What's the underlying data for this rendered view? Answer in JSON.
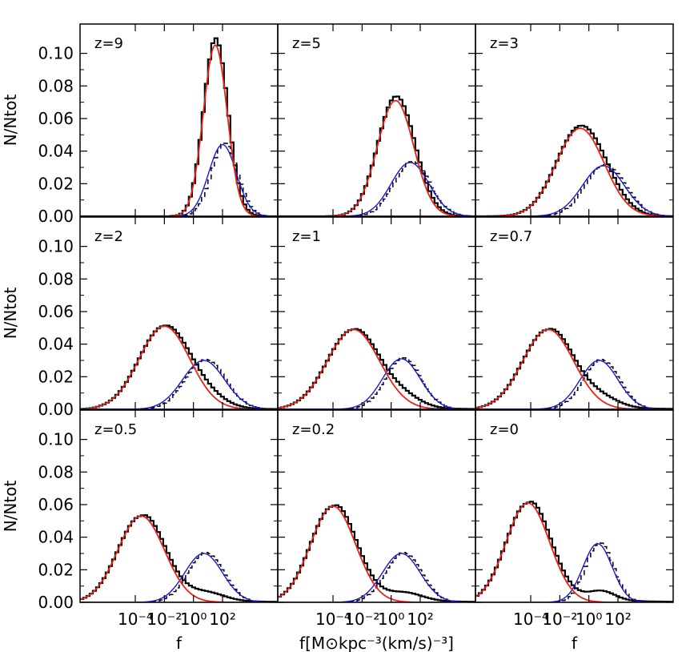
{
  "chart_data": {
    "type": "line",
    "layout": "3x3 grid of panels sharing axes",
    "x_scale": "log",
    "x_tick_labels": [
      "10⁻⁴",
      "10⁻²",
      "10⁰",
      "10²"
    ],
    "x_tick_values": [
      -4,
      -2,
      0,
      2
    ],
    "xlim_log10": [
      -7.8,
      5.8
    ],
    "y_tick_labels": [
      "0.00",
      "0.02",
      "0.04",
      "0.06",
      "0.08",
      "0.10"
    ],
    "ylim": [
      0,
      0.118
    ],
    "xlabel_side": "f",
    "xlabel_center": "f[M⊙kpc⁻³(km/s)⁻³]",
    "ylabel": "N/Ntot",
    "colors": {
      "histogram": "#000000",
      "fit_main": "#e8231a",
      "fit_secondary": "#1a1ad6"
    },
    "panels": [
      {
        "label": "z=9",
        "main": {
          "mu": 1.5,
          "sigma": 0.82,
          "amp": 0.105
        },
        "secondary": {
          "mu": 2.0,
          "sigma": 0.95,
          "amp": 0.044
        },
        "tail": 0.0
      },
      {
        "label": "z=5",
        "main": {
          "mu": 0.3,
          "sigma": 1.25,
          "amp": 0.071
        },
        "secondary": {
          "mu": 1.3,
          "sigma": 1.3,
          "amp": 0.033
        },
        "tail": 0.0
      },
      {
        "label": "z=3",
        "main": {
          "mu": -0.6,
          "sigma": 1.65,
          "amp": 0.054
        },
        "secondary": {
          "mu": 1.0,
          "sigma": 1.45,
          "amp": 0.031
        },
        "tail": 0.0
      },
      {
        "label": "z=2",
        "main": {
          "mu": -2.0,
          "sigma": 1.75,
          "amp": 0.051
        },
        "secondary": {
          "mu": 0.7,
          "sigma": 1.45,
          "amp": 0.03
        },
        "tail": 0.002
      },
      {
        "label": "z=1",
        "main": {
          "mu": -2.6,
          "sigma": 1.8,
          "amp": 0.049
        },
        "secondary": {
          "mu": 0.7,
          "sigma": 1.3,
          "amp": 0.031
        },
        "tail": 0.003
      },
      {
        "label": "z=0.7",
        "main": {
          "mu": -2.8,
          "sigma": 1.75,
          "amp": 0.049
        },
        "secondary": {
          "mu": 0.7,
          "sigma": 1.3,
          "amp": 0.03
        },
        "tail": 0.004
      },
      {
        "label": "z=0.5",
        "main": {
          "mu": -3.6,
          "sigma": 1.6,
          "amp": 0.053
        },
        "secondary": {
          "mu": 0.7,
          "sigma": 1.3,
          "amp": 0.03
        },
        "tail": 0.006
      },
      {
        "label": "z=0.2",
        "main": {
          "mu": -4.0,
          "sigma": 1.55,
          "amp": 0.059
        },
        "secondary": {
          "mu": 0.7,
          "sigma": 1.3,
          "amp": 0.03
        },
        "tail": 0.007
      },
      {
        "label": "z=0",
        "main": {
          "mu": -4.2,
          "sigma": 1.5,
          "amp": 0.061
        },
        "secondary": {
          "mu": 0.6,
          "sigma": 1.0,
          "amp": 0.036
        },
        "tail": 0.008
      }
    ]
  }
}
